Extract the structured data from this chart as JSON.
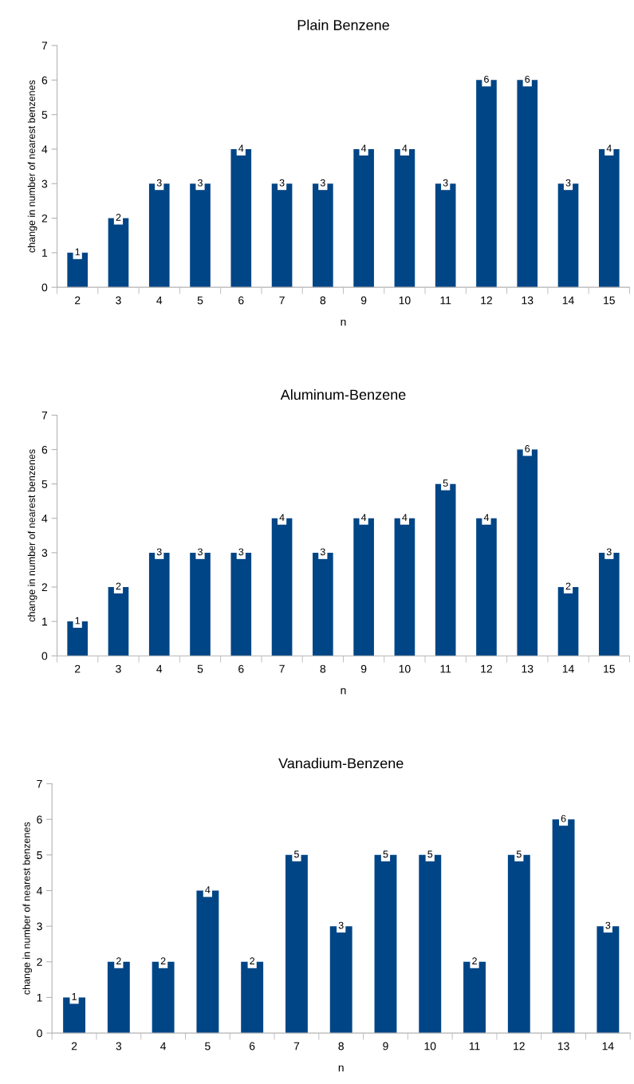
{
  "chart_data": [
    {
      "type": "bar",
      "title": "Plain Benzene",
      "xlabel": "n",
      "ylabel": "change in number of nearest benzenes",
      "categories": [
        "2",
        "3",
        "4",
        "5",
        "6",
        "7",
        "8",
        "9",
        "10",
        "11",
        "12",
        "13",
        "14",
        "15"
      ],
      "values": [
        1,
        2,
        3,
        3,
        4,
        3,
        3,
        4,
        4,
        3,
        6,
        6,
        3,
        4
      ],
      "color": "#004586",
      "ylim": [
        0,
        7
      ],
      "yticks": [
        0,
        1,
        2,
        3,
        4,
        5,
        6,
        7
      ],
      "data_labels": true
    },
    {
      "type": "bar",
      "title": "Aluminum-Benzene",
      "xlabel": "n",
      "ylabel": "change in number of nearest benzenes",
      "categories": [
        "2",
        "3",
        "4",
        "5",
        "6",
        "7",
        "8",
        "9",
        "10",
        "11",
        "12",
        "13",
        "14",
        "15"
      ],
      "values": [
        1,
        2,
        3,
        3,
        3,
        4,
        3,
        4,
        4,
        5,
        4,
        6,
        2,
        3
      ],
      "color": "#004586",
      "ylim": [
        0,
        7
      ],
      "yticks": [
        0,
        1,
        2,
        3,
        4,
        5,
        6,
        7
      ],
      "data_labels": true
    },
    {
      "type": "bar",
      "title": "Vanadium-Benzene",
      "xlabel": "n",
      "ylabel": "change in number of nearest benzenes",
      "categories": [
        "2",
        "3",
        "4",
        "5",
        "6",
        "7",
        "8",
        "9",
        "10",
        "11",
        "12",
        "13",
        "14"
      ],
      "values": [
        1,
        2,
        2,
        4,
        2,
        5,
        3,
        5,
        5,
        2,
        5,
        6,
        3
      ],
      "color": "#004586",
      "ylim": [
        0,
        7
      ],
      "yticks": [
        0,
        1,
        2,
        3,
        4,
        5,
        6,
        7
      ],
      "data_labels": true
    }
  ]
}
